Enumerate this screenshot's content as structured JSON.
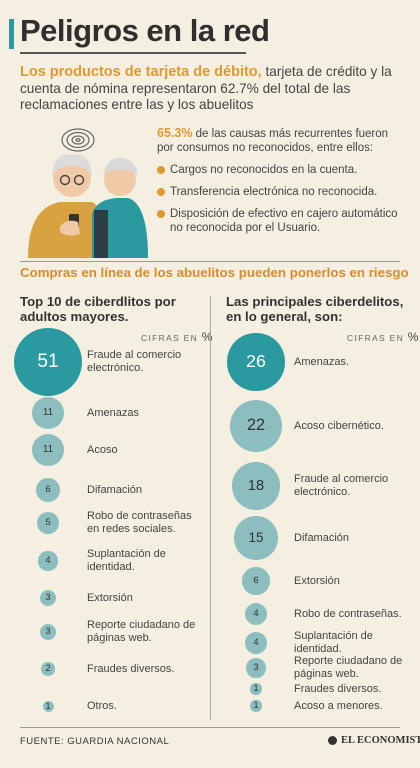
{
  "title": "Peligros en la red",
  "intro": {
    "highlight": "Los productos de tarjeta de débito,",
    "text": " tarjeta de crédito y la cuenta de nómina representaron 62.7% del total de las reclamaciones entre las y los abuelitos"
  },
  "causes": {
    "pct": "65.3%",
    "text": " de las causas más recurrentes fueron por consumos no reconocidos, entre ellos:",
    "items": [
      "Cargos no reconocidos en la cuenta.",
      "Transferencia electrónica no reconocida.",
      "Disposición de efectivo en cajero automático no reconocida por el Usuario."
    ]
  },
  "subhead": "Compras en línea de los abuelitos pueden ponerlos en riesgo",
  "units": {
    "label": "CIFRAS EN",
    "symbol": "%"
  },
  "colors": {
    "accent": "#2a9aa0",
    "orange": "#e1992f",
    "bubble": "#8cbdbf",
    "background": "#f5efe2"
  },
  "chart_data": [
    {
      "type": "bubble",
      "title": "Top 10 de ciberdlitos por adultos mayores.",
      "categories": [
        "Fraude al comercio electrónico.",
        "Amenazas",
        "Acoso",
        "Difamación",
        "Robo de contraseñas en redes sociales.",
        "Suplantación de identidad.",
        "Extorsión",
        "Reporte ciudadano de páginas web.",
        "Fraudes diversos.",
        "Otros."
      ],
      "values": [
        51,
        11,
        11,
        6,
        5,
        4,
        3,
        3,
        2,
        1
      ]
    },
    {
      "type": "bubble",
      "title": "Las principales ciberdelitos, en lo general, son:",
      "categories": [
        "Amenazas.",
        "Acoso cibernético.",
        "Fraude al comercio electrónico.",
        "Difamación",
        "Extorsión",
        "Robo de contraseñas.",
        "Suplantación de identidad.",
        "Reporte ciudadano de páginas web.",
        "Fraudes diversos.",
        "Acoso a menores."
      ],
      "values": [
        26,
        22,
        18,
        15,
        6,
        4,
        4,
        3,
        1,
        1
      ]
    }
  ],
  "footer": {
    "source": "FUENTE:  GUARDIA NACIONAL",
    "brand": "EL ECONOMISTA"
  }
}
